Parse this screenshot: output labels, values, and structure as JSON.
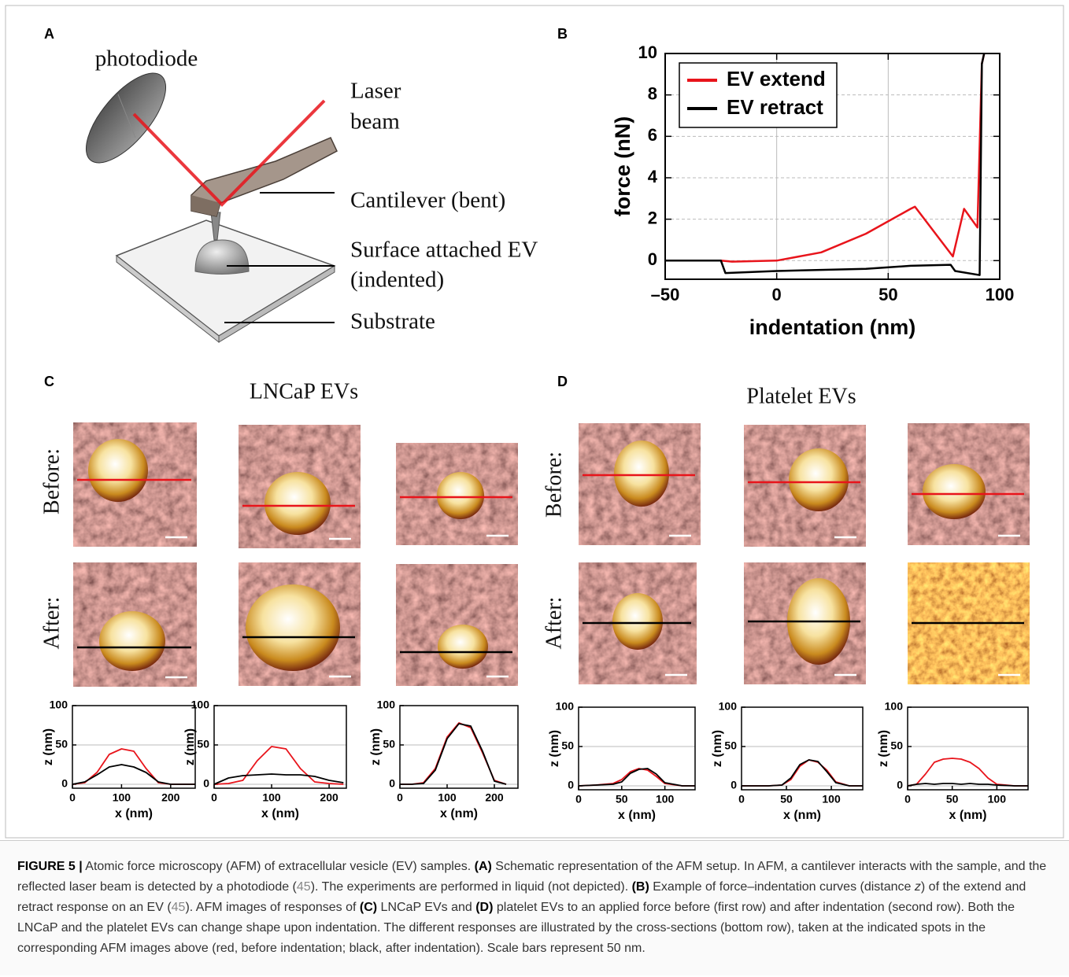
{
  "panel_labels": [
    "A",
    "B",
    "C",
    "D"
  ],
  "diagram": {
    "photodiode": "photodiode",
    "laser": [
      "Laser",
      "beam"
    ],
    "cantilever": "Cantilever (bent)",
    "ev": [
      "Surface attached EV",
      "(indented)"
    ],
    "substrate": "Substrate"
  },
  "image_panels": [
    {
      "title": "LNCaP EVs",
      "rows": [
        "Before:",
        "After:"
      ]
    },
    {
      "title": "Platelet EVs",
      "rows": [
        "Before:",
        "After:"
      ]
    }
  ],
  "chart_data": [
    {
      "type": "line",
      "x_label": "indentation (nm)",
      "y_label": "force (nN)",
      "xlim": [
        -50,
        100
      ],
      "ylim": [
        -0.9,
        10
      ],
      "xticks": [
        {
          "value": -50,
          "label": "–50"
        },
        0,
        50,
        100
      ],
      "yticks": [
        0,
        2,
        4,
        6,
        8,
        10
      ],
      "grid": true,
      "legend": "upper-left",
      "series": [
        {
          "name": "EV extend",
          "color": "#e8141b",
          "x": [
            -50,
            -25,
            -20,
            0,
            20,
            40,
            60,
            62,
            79,
            84,
            90,
            92,
            93
          ],
          "values": [
            0,
            0,
            -0.05,
            0,
            0.4,
            1.3,
            2.5,
            2.6,
            0.2,
            2.5,
            1.6,
            9.5,
            10
          ]
        },
        {
          "name": "EV retract",
          "color": "#000000",
          "x": [
            -50,
            -25,
            -23,
            0,
            40,
            60,
            78,
            80,
            91,
            92,
            93
          ],
          "values": [
            0,
            0,
            -0.6,
            -0.5,
            -0.4,
            -0.25,
            -0.2,
            -0.5,
            -0.7,
            9.5,
            10
          ]
        }
      ]
    },
    {
      "type": "line",
      "x_label": "x (nm)",
      "y_label": "z (nm)",
      "xlim": [
        0,
        250
      ],
      "ylim": [
        -5,
        100
      ],
      "xticks": [
        0,
        100,
        200
      ],
      "yticks": [
        0,
        50,
        100
      ],
      "grid": true,
      "series": [
        {
          "color": "#e8141b",
          "x": [
            0,
            25,
            50,
            75,
            100,
            125,
            150,
            175,
            200,
            250
          ],
          "values": [
            0,
            2,
            15,
            38,
            45,
            42,
            20,
            2,
            0,
            0
          ]
        },
        {
          "color": "#000000",
          "x": [
            0,
            25,
            50,
            75,
            100,
            125,
            150,
            175,
            200,
            250
          ],
          "values": [
            0,
            3,
            12,
            22,
            25,
            22,
            15,
            3,
            0,
            0
          ]
        }
      ]
    },
    {
      "type": "line",
      "x_label": "x (nm)",
      "y_label": "z (nm)",
      "xlim": [
        0,
        230
      ],
      "ylim": [
        -5,
        100
      ],
      "xticks": [
        0,
        100,
        200
      ],
      "yticks": [
        0,
        50,
        100
      ],
      "grid": true,
      "series": [
        {
          "color": "#e8141b",
          "x": [
            0,
            25,
            50,
            75,
            100,
            125,
            150,
            175,
            200,
            225
          ],
          "values": [
            0,
            1,
            5,
            30,
            48,
            45,
            20,
            3,
            1,
            0
          ]
        },
        {
          "color": "#000000",
          "x": [
            0,
            25,
            50,
            75,
            100,
            125,
            150,
            175,
            200,
            225
          ],
          "values": [
            0,
            8,
            11,
            12,
            13,
            12,
            12,
            10,
            5,
            2
          ]
        }
      ]
    },
    {
      "type": "line",
      "x_label": "x (nm)",
      "y_label": "z (nm)",
      "xlim": [
        0,
        250
      ],
      "ylim": [
        -5,
        100
      ],
      "xticks": [
        0,
        100,
        200
      ],
      "yticks": [
        0,
        50,
        100
      ],
      "grid": true,
      "series": [
        {
          "color": "#e8141b",
          "x": [
            0,
            25,
            50,
            75,
            100,
            125,
            150,
            175,
            200,
            225
          ],
          "values": [
            0,
            0,
            2,
            20,
            60,
            78,
            72,
            40,
            5,
            0
          ]
        },
        {
          "color": "#000000",
          "x": [
            0,
            25,
            50,
            75,
            100,
            125,
            150,
            175,
            200,
            225
          ],
          "values": [
            0,
            0,
            1,
            18,
            58,
            77,
            74,
            42,
            4,
            0
          ]
        }
      ]
    },
    {
      "type": "line",
      "x_label": "x (nm)",
      "y_label": "z (nm)",
      "xlim": [
        0,
        135
      ],
      "ylim": [
        -5,
        100
      ],
      "xticks": [
        0,
        50,
        100
      ],
      "yticks": [
        0,
        50,
        100
      ],
      "grid": true,
      "series": [
        {
          "color": "#e8141b",
          "x": [
            0,
            20,
            40,
            50,
            60,
            70,
            80,
            90,
            100,
            120,
            135
          ],
          "values": [
            0,
            1,
            3,
            8,
            18,
            22,
            20,
            12,
            3,
            0,
            0
          ]
        },
        {
          "color": "#000000",
          "x": [
            0,
            20,
            40,
            50,
            60,
            70,
            80,
            90,
            100,
            120,
            135
          ],
          "values": [
            0,
            1,
            2,
            5,
            16,
            21,
            22,
            15,
            4,
            0,
            0
          ]
        }
      ]
    },
    {
      "type": "line",
      "x_label": "x (nm)",
      "y_label": "z (nm)",
      "xlim": [
        0,
        135
      ],
      "ylim": [
        -5,
        100
      ],
      "xticks": [
        0,
        50,
        100
      ],
      "yticks": [
        0,
        50,
        100
      ],
      "grid": true,
      "series": [
        {
          "color": "#e8141b",
          "x": [
            0,
            30,
            45,
            55,
            65,
            75,
            85,
            95,
            105,
            120,
            135
          ],
          "values": [
            0,
            0,
            1,
            8,
            25,
            33,
            30,
            20,
            5,
            0,
            0
          ]
        },
        {
          "color": "#000000",
          "x": [
            0,
            30,
            45,
            55,
            65,
            75,
            85,
            95,
            105,
            120,
            135
          ],
          "values": [
            0,
            0,
            1,
            10,
            27,
            33,
            31,
            18,
            4,
            0,
            0
          ]
        }
      ]
    },
    {
      "type": "line",
      "x_label": "x (nm)",
      "y_label": "z (nm)",
      "xlim": [
        0,
        135
      ],
      "ylim": [
        -5,
        100
      ],
      "xticks": [
        0,
        50,
        100
      ],
      "yticks": [
        0,
        50,
        100
      ],
      "grid": true,
      "series": [
        {
          "color": "#e8141b",
          "x": [
            0,
            10,
            20,
            30,
            40,
            50,
            60,
            70,
            80,
            90,
            100,
            120,
            135
          ],
          "values": [
            0,
            2,
            15,
            30,
            34,
            35,
            34,
            30,
            22,
            10,
            2,
            0,
            0
          ]
        },
        {
          "color": "#000000",
          "x": [
            0,
            10,
            20,
            30,
            40,
            50,
            60,
            70,
            80,
            90,
            100,
            120,
            135
          ],
          "values": [
            0,
            2,
            3,
            2,
            3,
            3,
            2,
            3,
            2,
            2,
            1,
            0,
            0
          ]
        }
      ]
    }
  ],
  "caption": [
    {
      "text": "FIGURE 5 |",
      "style": "bold"
    },
    {
      "text": " Atomic force microscopy (AFM) of extracellular vesicle (EV) samples. "
    },
    {
      "text": "(A)",
      "style": "bold"
    },
    {
      "text": " Schematic representation of the AFM setup. In AFM, a cantilever interacts with the sample, and the reflected laser beam is detected by a photodiode ("
    },
    {
      "text": "45",
      "style": "link"
    },
    {
      "text": "). The experiments are performed in liquid (not depicted). "
    },
    {
      "text": "(B)",
      "style": "bold"
    },
    {
      "text": " Example of force–indentation curves (distance "
    },
    {
      "text": "z",
      "style": "italic"
    },
    {
      "text": ") of the extend and retract response on an EV ("
    },
    {
      "text": "45",
      "style": "link"
    },
    {
      "text": "). AFM images of responses of "
    },
    {
      "text": "(C)",
      "style": "bold"
    },
    {
      "text": " LNCaP EVs and "
    },
    {
      "text": "(D)",
      "style": "bold"
    },
    {
      "text": " platelet EVs to an applied force before (first row) and after indentation (second row). Both the LNCaP and the platelet EVs can change shape upon indentation. The different responses are illustrated by the cross-sections (bottom row), taken at the indicated spots in the corresponding AFM images above (red, before indentation; black, after indentation). Scale bars represent 50 nm."
    }
  ]
}
